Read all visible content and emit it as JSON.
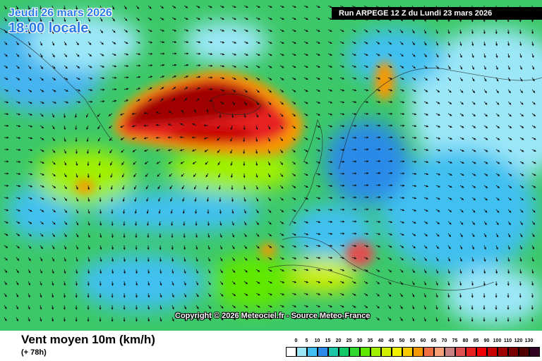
{
  "overlay": {
    "date": "Jeudi 26 mars 2026",
    "time": "18:00 locale"
  },
  "run_info": "Run ARPEGE 12 Z du Lundi 23 mars 2026",
  "copyright": "Copyright © 2026 Meteociel.fr - Source Meteo-France",
  "footer": {
    "title": "Vent moyen 10m (km/h)",
    "subtitle": "(+ 78h)"
  },
  "legend": {
    "labels": [
      "0",
      "5",
      "10",
      "15",
      "20",
      "25",
      "30",
      "35",
      "40",
      "45",
      "50",
      "55",
      "60",
      "65",
      "70",
      "75",
      "80",
      "85",
      "90",
      "100",
      "110",
      "120",
      "130"
    ],
    "colors": [
      "#ffffff",
      "#9be7f8",
      "#40c0f0",
      "#2c8ae8",
      "#1cc8a8",
      "#10c868",
      "#30d830",
      "#60e800",
      "#a0f000",
      "#d0f000",
      "#f0f000",
      "#f8c800",
      "#f89800",
      "#f07040",
      "#f8a078",
      "#c88080",
      "#e05050",
      "#e82020",
      "#f00000",
      "#c80000",
      "#a00000",
      "#780000",
      "#500000",
      "#300020"
    ]
  },
  "icons": {
    "wind_arrow": "wind-arrow-icon"
  }
}
